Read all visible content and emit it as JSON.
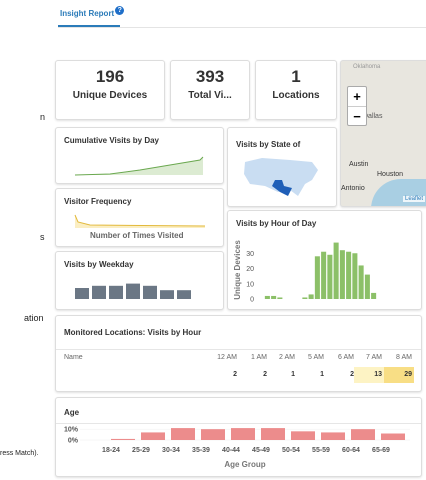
{
  "header": {
    "tab": "Insight Report",
    "help_icon": "?"
  },
  "left_fragments": [
    "n",
    "s",
    "ation",
    "ress Match)."
  ],
  "kpis": [
    {
      "value": "196",
      "label": "Unique Devices"
    },
    {
      "value": "393",
      "label": "Total Vi..."
    },
    {
      "value": "1",
      "label": "Locations"
    }
  ],
  "map": {
    "labels": [
      "Oklahoma",
      "Dallas",
      "Austin",
      "Houston",
      "Antonio"
    ],
    "zoom_in": "+",
    "zoom_out": "−",
    "attribution": "Leaflet"
  },
  "cumulative": {
    "title": "Cumulative Visits by Day"
  },
  "state": {
    "title": "Visits by State of"
  },
  "frequency": {
    "title": "Visitor Frequency",
    "x_label": "Number of Times Visited"
  },
  "weekday": {
    "title": "Visits by Weekday",
    "values": [
      10,
      12,
      12,
      14,
      12,
      8,
      8
    ],
    "color": "#6b7785"
  },
  "hour": {
    "title": "Visits by Hour of Day",
    "y_label": "Unique Devices",
    "ylim": [
      0,
      40
    ],
    "yticks": [
      0,
      10,
      20,
      30
    ],
    "color": "#8cc068",
    "values": [
      0,
      2,
      2,
      1,
      0,
      0,
      0,
      1,
      3,
      28,
      31,
      29,
      37,
      32,
      31,
      30,
      22,
      16,
      4,
      0,
      0,
      0,
      0,
      0
    ]
  },
  "table": {
    "title": "Monitored Locations: Visits by Hour",
    "columns": [
      "Name",
      "12 AM",
      "1 AM",
      "2 AM",
      "5 AM",
      "6 AM",
      "7 AM",
      "8 AM"
    ],
    "cells": [
      {
        "value": 2
      },
      {
        "value": 2
      },
      {
        "value": 1
      },
      {
        "value": 1
      },
      {
        "value": 2
      },
      {
        "value": 13,
        "color": "#fdf3c4"
      },
      {
        "value": 29,
        "color": "#f8de85"
      }
    ]
  },
  "age": {
    "title": "Age",
    "x_label": "Age Group",
    "color": "#ec8c8c",
    "ylim": [
      0,
      12
    ],
    "yticks": [
      {
        "value": 0,
        "label": "0%"
      },
      {
        "value": 10,
        "label": "10%"
      }
    ],
    "categories": [
      "18-24",
      "25-29",
      "30-34",
      "35-39",
      "40-44",
      "45-49",
      "50-54",
      "55-59",
      "60-64",
      "65-69"
    ],
    "values": [
      1,
      7,
      11,
      10,
      11,
      11,
      8,
      7,
      10,
      6
    ]
  }
}
